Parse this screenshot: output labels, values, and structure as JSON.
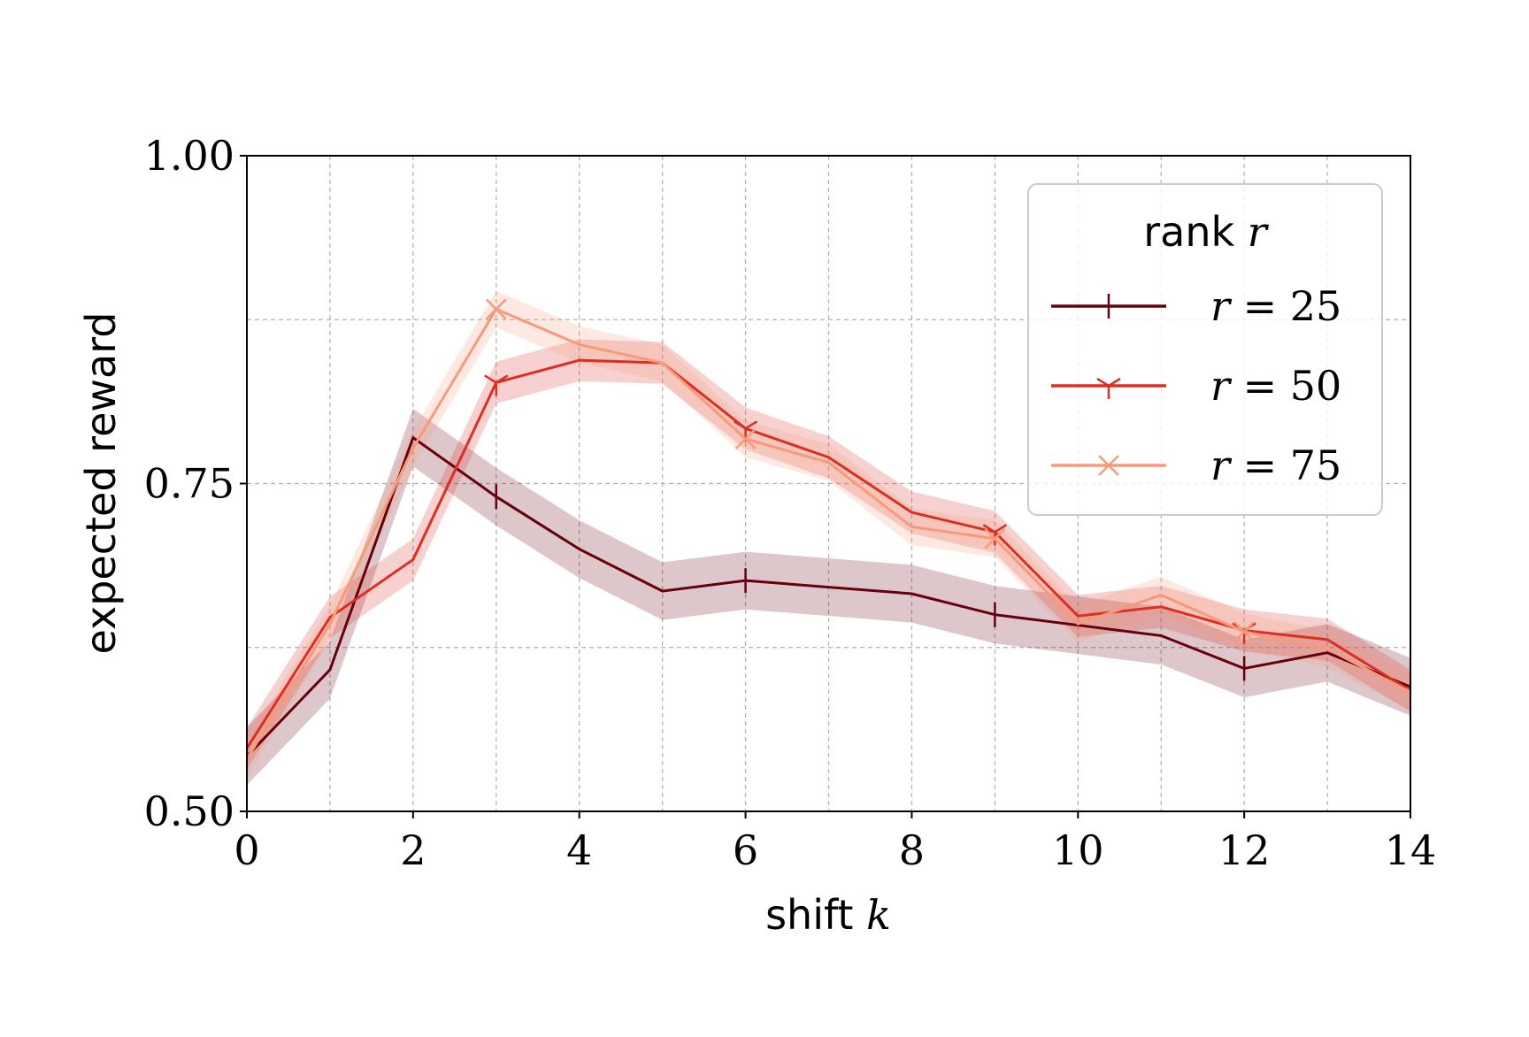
{
  "chart_data": {
    "type": "line",
    "xlabel": "shift k",
    "xlabel_text": "shift ",
    "xlabel_var": "k",
    "ylabel": "expected reward",
    "xlim": [
      0,
      14
    ],
    "ylim": [
      0.5,
      1.0
    ],
    "xticks": [
      "0",
      "2",
      "4",
      "6",
      "8",
      "10",
      "12",
      "14"
    ],
    "yticks": [
      "0.50",
      "0.75",
      "1.00"
    ],
    "grid": true,
    "legend_placement": "top-right",
    "legend_title": "rank r",
    "legend_title_text": "rank ",
    "legend_title_var": "r",
    "x": [
      0,
      1,
      2,
      3,
      4,
      5,
      6,
      7,
      8,
      9,
      10,
      11,
      12,
      13,
      14
    ],
    "series": [
      {
        "name": "r = 25",
        "label_var": "r",
        "label_rest": " = 25",
        "color": "#67000d",
        "marker": "vline",
        "band": 0.022,
        "values": [
          0.542,
          0.608,
          0.785,
          0.74,
          0.7,
          0.668,
          0.676,
          0.671,
          0.666,
          0.65,
          0.642,
          0.634,
          0.609,
          0.621,
          0.595
        ]
      },
      {
        "name": "r = 50",
        "label_var": "r",
        "label_rest": " = 50",
        "color": "#dc2f24",
        "marker": "tri",
        "band": 0.016,
        "values": [
          0.548,
          0.648,
          0.692,
          0.827,
          0.844,
          0.842,
          0.792,
          0.77,
          0.728,
          0.713,
          0.649,
          0.656,
          0.638,
          0.631,
          0.592
        ]
      },
      {
        "name": "r = 75",
        "label_var": "r",
        "label_rest": " = 75",
        "color": "#f89a7a",
        "marker": "x",
        "band": 0.014,
        "values": [
          0.54,
          0.643,
          0.777,
          0.883,
          0.856,
          0.842,
          0.784,
          0.766,
          0.717,
          0.708,
          0.643,
          0.665,
          0.637,
          0.624,
          0.591
        ]
      }
    ]
  }
}
